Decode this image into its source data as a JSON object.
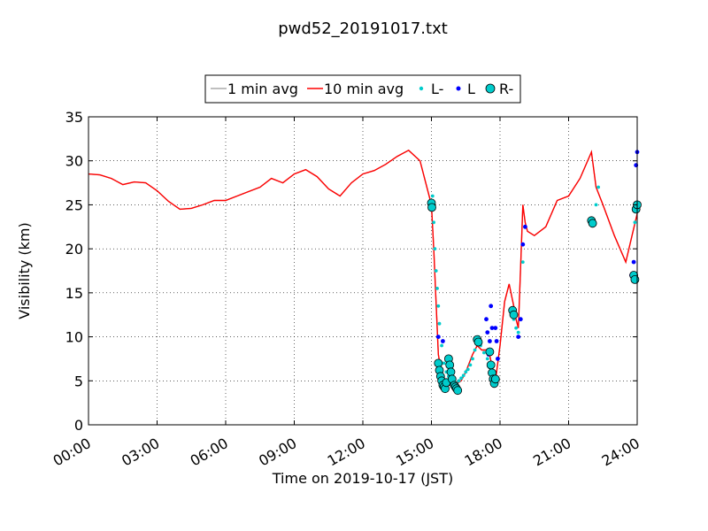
{
  "chart_data": {
    "type": "line",
    "title": "pwd52_20191017.txt",
    "xlabel": "Time on 2019-10-17 (JST)",
    "ylabel": "Visibility (km)",
    "xlim": [
      0,
      24
    ],
    "ylim": [
      0,
      35
    ],
    "x_ticks": [
      0,
      3,
      6,
      9,
      12,
      15,
      18,
      21,
      24
    ],
    "x_tick_labels": [
      "00:00",
      "03:00",
      "06:00",
      "09:00",
      "12:00",
      "15:00",
      "18:00",
      "21:00",
      "24:00"
    ],
    "y_ticks": [
      0,
      5,
      10,
      15,
      20,
      25,
      30,
      35
    ],
    "y_tick_labels": [
      "0",
      "5",
      "10",
      "15",
      "20",
      "25",
      "30",
      "35"
    ],
    "grid": true,
    "legend_position": "top-center",
    "legend": [
      "1 min avg",
      "10 min avg",
      "L-",
      "L",
      "R-"
    ],
    "series": [
      {
        "name": "10 min avg",
        "color": "#ff0000",
        "x": [
          0,
          0.5,
          1,
          1.5,
          2,
          2.5,
          3,
          3.5,
          4,
          4.5,
          5,
          5.5,
          6,
          6.5,
          7,
          7.5,
          8,
          8.5,
          9,
          9.5,
          10,
          10.5,
          11,
          11.5,
          12,
          12.5,
          13,
          13.5,
          14,
          14.5,
          15,
          15.1,
          15.2,
          15.3,
          15.5,
          15.7,
          16,
          16.3,
          16.5,
          16.8,
          17,
          17.2,
          17.5,
          17.7,
          17.8,
          18,
          18.2,
          18.4,
          18.6,
          18.7,
          18.8,
          18.9,
          19,
          19.1,
          19.2,
          19.5,
          20,
          20.5,
          21,
          21.5,
          22,
          22.2,
          22.5,
          23,
          23.5,
          24
        ],
        "y": [
          28.5,
          28.4,
          28,
          27.3,
          27.6,
          27.5,
          26.6,
          25.4,
          24.5,
          24.6,
          25,
          25.5,
          25.5,
          26,
          26.5,
          27,
          28,
          27.5,
          28.5,
          29,
          28.2,
          26.8,
          26,
          27.5,
          28.5,
          28.9,
          29.6,
          30.5,
          31.2,
          30,
          25,
          20,
          14,
          8,
          5,
          4.5,
          4.5,
          5,
          6,
          8,
          9,
          8.5,
          8.5,
          6,
          5,
          9,
          14,
          16,
          13.5,
          12,
          11,
          18,
          25,
          23,
          22,
          21.5,
          22.5,
          25.5,
          26,
          28,
          31,
          27,
          25,
          21.5,
          18.5,
          24
        ]
      },
      {
        "name": "1 min avg",
        "color": "#aaaaaa",
        "x": [
          0,
          0.5,
          1,
          1.5,
          2,
          2.5,
          3,
          3.5,
          4,
          4.5,
          5,
          5.5,
          6,
          6.5,
          7,
          7.5,
          8,
          8.5,
          9,
          9.5,
          10,
          10.5,
          11,
          11.5,
          12,
          12.5,
          13,
          13.5,
          14,
          14.5,
          15,
          15.1,
          15.2,
          15.3,
          15.5,
          15.7,
          16,
          16.3,
          16.5,
          16.8,
          17,
          17.2,
          17.5,
          17.7,
          17.8,
          18,
          18.2,
          18.4,
          18.6,
          18.7,
          18.8,
          18.9,
          19,
          19.1,
          19.2,
          19.5,
          20,
          20.5,
          21,
          21.5,
          22,
          22.2,
          22.5,
          23,
          23.5,
          24
        ],
        "y": [
          28.5,
          28.4,
          28,
          27.3,
          27.6,
          27.5,
          26.6,
          25.4,
          24.5,
          24.6,
          25,
          25.5,
          25.5,
          26,
          26.5,
          27,
          28,
          27.5,
          28.5,
          29,
          28.2,
          26.8,
          26,
          27.5,
          28.5,
          28.9,
          29.6,
          30.5,
          31.2,
          30,
          25,
          20,
          14,
          8,
          5,
          4.5,
          4.5,
          5,
          6,
          8,
          9,
          8.5,
          8.5,
          6,
          5,
          9,
          14,
          16,
          13.5,
          12,
          11,
          18,
          25,
          23,
          22,
          21.5,
          22.5,
          25.5,
          26,
          28,
          31,
          27,
          25,
          21.5,
          18.5,
          24
        ]
      },
      {
        "name": "L-",
        "color": "#00cccc",
        "marker": "small-circle",
        "x": [
          15.05,
          15.1,
          15.15,
          15.2,
          15.25,
          15.3,
          15.35,
          15.45,
          15.55,
          15.65,
          15.75,
          15.85,
          16.0,
          16.1,
          16.2,
          16.3,
          16.4,
          16.5,
          16.6,
          16.7,
          16.8,
          16.9,
          17.05,
          17.15,
          17.3,
          17.45,
          17.55,
          17.65,
          17.75,
          18.6,
          18.7,
          18.8,
          18.9,
          19.0,
          22.1,
          22.2,
          22.3,
          23.9,
          24.0
        ],
        "y": [
          26,
          23,
          20,
          17.5,
          15.5,
          13.5,
          11.5,
          9,
          7,
          6,
          5.5,
          5,
          4.5,
          4.7,
          5,
          5.3,
          5.6,
          6,
          6.3,
          6.8,
          7.5,
          8.5,
          10,
          9,
          8.2,
          7.5,
          6.5,
          5.5,
          5,
          12,
          11,
          10.5,
          12,
          18.5,
          23,
          25,
          27,
          23,
          25
        ]
      },
      {
        "name": "L",
        "color": "#0000ff",
        "marker": "dot",
        "x": [
          15.3,
          15.5,
          17.4,
          17.45,
          17.5,
          17.55,
          17.6,
          17.65,
          17.8,
          17.85,
          17.9,
          18.8,
          18.9,
          19.0,
          19.1,
          23.75,
          23.85,
          23.95,
          24.0
        ],
        "y": [
          10,
          9.5,
          12,
          10.5,
          8,
          9.5,
          13.5,
          11,
          11,
          9.5,
          7.5,
          10,
          12,
          20.5,
          22.5,
          17,
          18.5,
          29.5,
          31
        ]
      },
      {
        "name": "R-",
        "color": "#00cccc",
        "marker": "large-circle",
        "x": [
          15.0,
          15.02,
          15.3,
          15.35,
          15.4,
          15.45,
          15.5,
          15.55,
          15.6,
          15.65,
          15.75,
          15.8,
          15.85,
          15.9,
          16.0,
          16.05,
          16.1,
          16.15,
          17.0,
          17.05,
          17.55,
          17.6,
          17.65,
          17.7,
          17.75,
          17.8,
          18.55,
          18.6,
          22.0,
          22.05,
          23.85,
          23.9,
          23.95,
          24.0
        ],
        "y": [
          25.2,
          24.7,
          7,
          6.2,
          5.5,
          5,
          4.5,
          4.3,
          4.1,
          4.8,
          7.5,
          6.8,
          6,
          5.2,
          4.5,
          4.3,
          4.1,
          3.9,
          9.7,
          9.4,
          8.3,
          6.8,
          5.9,
          5.2,
          4.7,
          5.2,
          13,
          12.5,
          23.2,
          22.9,
          17,
          16.5,
          24.5,
          25
        ]
      }
    ]
  }
}
